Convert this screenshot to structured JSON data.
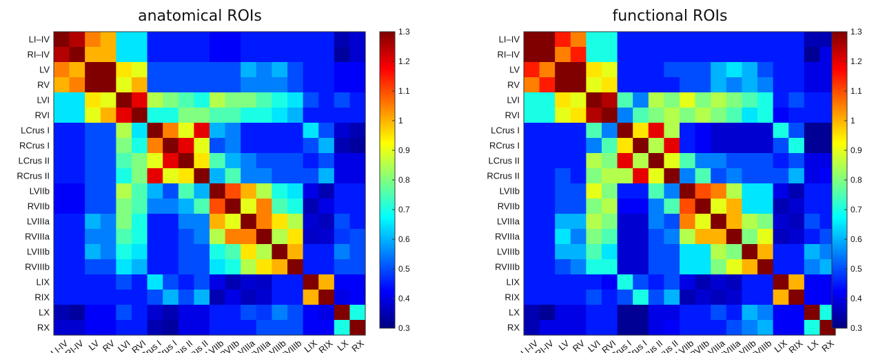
{
  "chart_data": [
    {
      "type": "heatmap",
      "title": "anatomical ROIs",
      "labels": [
        "LI–IV",
        "RI–IV",
        "LV",
        "RV",
        "LVI",
        "RVI",
        "LCrus I",
        "RCrus I",
        "LCrus II",
        "RCrus II",
        "LVIIb",
        "RVIIb",
        "LVIIIa",
        "RVIIIa",
        "LVIIIb",
        "RVIIIb",
        "LIX",
        "RIX",
        "LX",
        "RX"
      ],
      "x_tick_labels": [
        "LI-IV",
        "RI-IV",
        "LV",
        "RV",
        "LVI",
        "RVI",
        "LCrus I",
        "RCrus I",
        "LCrus II",
        "RCrus II",
        "LVIIb",
        "RVIIb",
        "LVIIIa",
        "RVIIIa",
        "LVIIIb",
        "RVIIIb",
        "LIX",
        "RIX",
        "LX",
        "RX"
      ],
      "colorbar": {
        "min": 0.3,
        "max": 1.3,
        "ticks": [
          "1.3",
          "1.2",
          "1.1",
          "1",
          "0.9",
          "0.8",
          "0.7",
          "0.6",
          "0.5",
          "0.4",
          "0.3"
        ]
      },
      "matrix": [
        [
          1.3,
          1.25,
          1.05,
          1.0,
          0.65,
          0.65,
          0.45,
          0.45,
          0.45,
          0.45,
          0.42,
          0.42,
          0.45,
          0.45,
          0.45,
          0.45,
          0.45,
          0.45,
          0.35,
          0.38
        ],
        [
          1.25,
          1.3,
          1.0,
          1.0,
          0.65,
          0.65,
          0.45,
          0.45,
          0.45,
          0.45,
          0.42,
          0.42,
          0.45,
          0.45,
          0.45,
          0.45,
          0.45,
          0.45,
          0.33,
          0.38
        ],
        [
          1.05,
          1.0,
          1.3,
          1.3,
          0.95,
          0.9,
          0.5,
          0.5,
          0.5,
          0.5,
          0.5,
          0.5,
          0.6,
          0.55,
          0.6,
          0.5,
          0.45,
          0.45,
          0.42,
          0.42
        ],
        [
          1.0,
          1.05,
          1.3,
          1.3,
          0.9,
          1.0,
          0.5,
          0.5,
          0.5,
          0.5,
          0.5,
          0.5,
          0.55,
          0.55,
          0.55,
          0.5,
          0.45,
          0.45,
          0.42,
          0.42
        ],
        [
          0.65,
          0.65,
          0.95,
          0.9,
          1.3,
          1.2,
          0.85,
          0.8,
          0.75,
          0.7,
          0.85,
          0.8,
          0.8,
          0.75,
          0.7,
          0.65,
          0.5,
          0.45,
          0.5,
          0.45
        ],
        [
          0.65,
          0.65,
          0.9,
          1.0,
          1.2,
          1.3,
          0.7,
          0.7,
          0.8,
          0.8,
          0.75,
          0.75,
          0.7,
          0.7,
          0.65,
          0.6,
          0.45,
          0.45,
          0.45,
          0.45
        ],
        [
          0.45,
          0.45,
          0.5,
          0.5,
          0.85,
          0.65,
          1.3,
          1.05,
          0.9,
          1.2,
          0.6,
          0.55,
          0.45,
          0.45,
          0.45,
          0.45,
          0.65,
          0.5,
          0.38,
          0.35
        ],
        [
          0.45,
          0.45,
          0.5,
          0.5,
          0.8,
          0.7,
          1.05,
          1.3,
          1.2,
          0.9,
          0.5,
          0.55,
          0.45,
          0.45,
          0.45,
          0.45,
          0.5,
          0.6,
          0.35,
          0.33
        ],
        [
          0.45,
          0.45,
          0.5,
          0.5,
          0.75,
          0.8,
          0.9,
          1.2,
          1.3,
          0.95,
          0.75,
          0.6,
          0.55,
          0.5,
          0.5,
          0.5,
          0.45,
          0.5,
          0.4,
          0.4
        ],
        [
          0.45,
          0.45,
          0.5,
          0.5,
          0.7,
          0.8,
          1.2,
          0.9,
          0.95,
          1.3,
          0.6,
          0.75,
          0.55,
          0.55,
          0.5,
          0.5,
          0.5,
          0.6,
          0.4,
          0.4
        ],
        [
          0.42,
          0.42,
          0.5,
          0.5,
          0.85,
          0.75,
          0.6,
          0.5,
          0.75,
          0.6,
          1.3,
          1.1,
          1.0,
          0.85,
          0.7,
          0.65,
          0.4,
          0.35,
          0.45,
          0.45
        ],
        [
          0.42,
          0.42,
          0.5,
          0.5,
          0.8,
          0.75,
          0.55,
          0.55,
          0.6,
          0.75,
          1.1,
          1.3,
          0.9,
          1.05,
          0.75,
          0.7,
          0.35,
          0.4,
          0.45,
          0.45
        ],
        [
          0.45,
          0.45,
          0.6,
          0.55,
          0.8,
          0.7,
          0.45,
          0.45,
          0.55,
          0.55,
          1.0,
          0.9,
          1.3,
          1.05,
          0.95,
          0.85,
          0.38,
          0.36,
          0.5,
          0.45
        ],
        [
          0.45,
          0.45,
          0.55,
          0.55,
          0.75,
          0.7,
          0.45,
          0.45,
          0.5,
          0.55,
          0.85,
          1.05,
          1.05,
          1.3,
          0.85,
          0.95,
          0.37,
          0.38,
          0.48,
          0.5
        ],
        [
          0.45,
          0.45,
          0.6,
          0.55,
          0.7,
          0.65,
          0.45,
          0.45,
          0.5,
          0.5,
          0.7,
          0.75,
          0.95,
          0.85,
          1.3,
          1.0,
          0.45,
          0.45,
          0.55,
          0.5
        ],
        [
          0.45,
          0.45,
          0.5,
          0.5,
          0.65,
          0.6,
          0.45,
          0.45,
          0.5,
          0.5,
          0.65,
          0.7,
          0.85,
          0.95,
          1.0,
          1.3,
          0.45,
          0.45,
          0.5,
          0.5
        ],
        [
          0.45,
          0.45,
          0.45,
          0.45,
          0.5,
          0.45,
          0.65,
          0.5,
          0.45,
          0.5,
          0.4,
          0.35,
          0.38,
          0.37,
          0.45,
          0.45,
          1.3,
          1.0,
          0.42,
          0.42
        ],
        [
          0.45,
          0.45,
          0.45,
          0.45,
          0.45,
          0.45,
          0.5,
          0.6,
          0.5,
          0.6,
          0.35,
          0.4,
          0.36,
          0.38,
          0.45,
          0.45,
          1.0,
          1.3,
          0.4,
          0.42
        ],
        [
          0.35,
          0.33,
          0.42,
          0.42,
          0.5,
          0.45,
          0.38,
          0.35,
          0.4,
          0.4,
          0.45,
          0.45,
          0.5,
          0.48,
          0.55,
          0.5,
          0.42,
          0.4,
          1.3,
          0.7
        ],
        [
          0.38,
          0.38,
          0.42,
          0.42,
          0.45,
          0.45,
          0.35,
          0.33,
          0.4,
          0.4,
          0.45,
          0.45,
          0.45,
          0.5,
          0.5,
          0.5,
          0.42,
          0.42,
          0.7,
          1.3
        ]
      ]
    },
    {
      "type": "heatmap",
      "title": "functional ROIs",
      "labels": [
        "LI–IV",
        "RI–IV",
        "LV",
        "RV",
        "LVI",
        "RVI",
        "LCrus I",
        "RCrus I",
        "LCrus II",
        "RCrus II",
        "LVIIb",
        "RVIIb",
        "LVIIIa",
        "RVIIIa",
        "LVIIIb",
        "RVIIIb",
        "LIX",
        "RIX",
        "LX",
        "RX"
      ],
      "x_tick_labels": [
        "LI-IV",
        "RI-IV",
        "LV",
        "RV",
        "LVI",
        "RVI",
        "LCrus I",
        "RCrus I",
        "LCrus II",
        "RCrus II",
        "LVIIb",
        "RVIIb",
        "LVIIIa",
        "RVIIIa",
        "LVIIIb",
        "RVIIIb",
        "LIX",
        "RIX",
        "LX",
        "RX"
      ],
      "colorbar": {
        "min": 0.3,
        "max": 1.3,
        "ticks": [
          "1.3",
          "1.2",
          "1.1",
          "1",
          "0.9",
          "0.8",
          "0.7",
          "0.6",
          "0.5",
          "0.4",
          "0.3"
        ]
      },
      "matrix": [
        [
          1.3,
          1.3,
          1.15,
          1.05,
          0.7,
          0.7,
          0.45,
          0.45,
          0.45,
          0.45,
          0.45,
          0.45,
          0.45,
          0.45,
          0.45,
          0.45,
          0.45,
          0.45,
          0.35,
          0.35
        ],
        [
          1.3,
          1.3,
          1.05,
          1.15,
          0.7,
          0.7,
          0.45,
          0.45,
          0.45,
          0.45,
          0.45,
          0.45,
          0.45,
          0.45,
          0.45,
          0.45,
          0.45,
          0.45,
          0.32,
          0.4
        ],
        [
          1.15,
          1.05,
          1.3,
          1.3,
          0.95,
          0.9,
          0.45,
          0.45,
          0.45,
          0.5,
          0.5,
          0.5,
          0.6,
          0.65,
          0.6,
          0.5,
          0.45,
          0.45,
          0.4,
          0.4
        ],
        [
          1.05,
          1.15,
          1.3,
          1.3,
          0.9,
          0.95,
          0.45,
          0.45,
          0.45,
          0.45,
          0.5,
          0.5,
          0.6,
          0.55,
          0.6,
          0.55,
          0.45,
          0.45,
          0.4,
          0.4
        ],
        [
          0.7,
          0.7,
          0.95,
          0.9,
          1.3,
          1.25,
          0.75,
          0.55,
          0.85,
          0.8,
          0.9,
          0.8,
          0.85,
          0.8,
          0.75,
          0.7,
          0.45,
          0.5,
          0.45,
          0.45
        ],
        [
          0.7,
          0.7,
          0.9,
          0.95,
          1.25,
          1.3,
          0.55,
          0.75,
          0.8,
          0.85,
          0.8,
          0.85,
          0.8,
          0.75,
          0.65,
          0.7,
          0.42,
          0.45,
          0.45,
          0.45
        ],
        [
          0.45,
          0.45,
          0.45,
          0.45,
          0.75,
          0.55,
          1.3,
          0.95,
          1.2,
          0.85,
          0.45,
          0.42,
          0.38,
          0.38,
          0.38,
          0.38,
          0.7,
          0.5,
          0.32,
          0.32
        ],
        [
          0.45,
          0.45,
          0.45,
          0.45,
          0.55,
          0.75,
          0.95,
          1.3,
          0.85,
          1.2,
          0.45,
          0.42,
          0.38,
          0.38,
          0.38,
          0.38,
          0.5,
          0.7,
          0.32,
          0.32
        ],
        [
          0.45,
          0.45,
          0.45,
          0.45,
          0.85,
          0.8,
          1.2,
          0.85,
          1.3,
          0.9,
          0.75,
          0.55,
          0.55,
          0.5,
          0.5,
          0.5,
          0.45,
          0.5,
          0.4,
          0.4
        ],
        [
          0.45,
          0.45,
          0.5,
          0.45,
          0.8,
          0.85,
          0.85,
          1.2,
          0.9,
          1.3,
          0.55,
          0.75,
          0.5,
          0.55,
          0.5,
          0.5,
          0.5,
          0.6,
          0.4,
          0.42
        ],
        [
          0.45,
          0.45,
          0.5,
          0.5,
          0.9,
          0.8,
          0.45,
          0.45,
          0.75,
          0.55,
          1.3,
          1.1,
          1.05,
          0.85,
          0.65,
          0.65,
          0.4,
          0.35,
          0.45,
          0.45
        ],
        [
          0.45,
          0.45,
          0.5,
          0.5,
          0.8,
          0.85,
          0.42,
          0.42,
          0.55,
          0.75,
          1.1,
          1.3,
          0.9,
          1.0,
          0.65,
          0.65,
          0.35,
          0.38,
          0.45,
          0.45
        ],
        [
          0.45,
          0.45,
          0.6,
          0.6,
          0.85,
          0.8,
          0.38,
          0.38,
          0.55,
          0.5,
          1.05,
          0.9,
          1.3,
          1.0,
          0.85,
          0.8,
          0.38,
          0.36,
          0.5,
          0.45
        ],
        [
          0.45,
          0.45,
          0.65,
          0.55,
          0.8,
          0.75,
          0.38,
          0.38,
          0.5,
          0.55,
          0.85,
          1.0,
          1.0,
          1.3,
          0.8,
          0.9,
          0.36,
          0.38,
          0.45,
          0.5
        ],
        [
          0.45,
          0.45,
          0.6,
          0.6,
          0.75,
          0.65,
          0.38,
          0.38,
          0.5,
          0.5,
          0.65,
          0.65,
          0.85,
          0.8,
          1.3,
          1.0,
          0.45,
          0.45,
          0.6,
          0.55
        ],
        [
          0.45,
          0.45,
          0.5,
          0.55,
          0.7,
          0.7,
          0.38,
          0.38,
          0.5,
          0.5,
          0.65,
          0.65,
          0.8,
          0.9,
          1.0,
          1.3,
          0.45,
          0.45,
          0.55,
          0.6
        ],
        [
          0.45,
          0.45,
          0.45,
          0.45,
          0.45,
          0.42,
          0.7,
          0.5,
          0.45,
          0.5,
          0.4,
          0.35,
          0.38,
          0.36,
          0.45,
          0.45,
          1.3,
          1.0,
          0.42,
          0.42
        ],
        [
          0.45,
          0.45,
          0.45,
          0.45,
          0.5,
          0.45,
          0.5,
          0.7,
          0.5,
          0.6,
          0.35,
          0.38,
          0.36,
          0.38,
          0.45,
          0.45,
          1.0,
          1.3,
          0.42,
          0.42
        ],
        [
          0.35,
          0.32,
          0.4,
          0.4,
          0.45,
          0.45,
          0.32,
          0.32,
          0.4,
          0.4,
          0.45,
          0.45,
          0.5,
          0.45,
          0.6,
          0.55,
          0.42,
          0.42,
          1.3,
          0.7
        ],
        [
          0.35,
          0.4,
          0.4,
          0.4,
          0.45,
          0.45,
          0.32,
          0.32,
          0.4,
          0.42,
          0.45,
          0.45,
          0.45,
          0.5,
          0.55,
          0.6,
          0.42,
          0.42,
          0.7,
          1.3
        ]
      ]
    }
  ]
}
